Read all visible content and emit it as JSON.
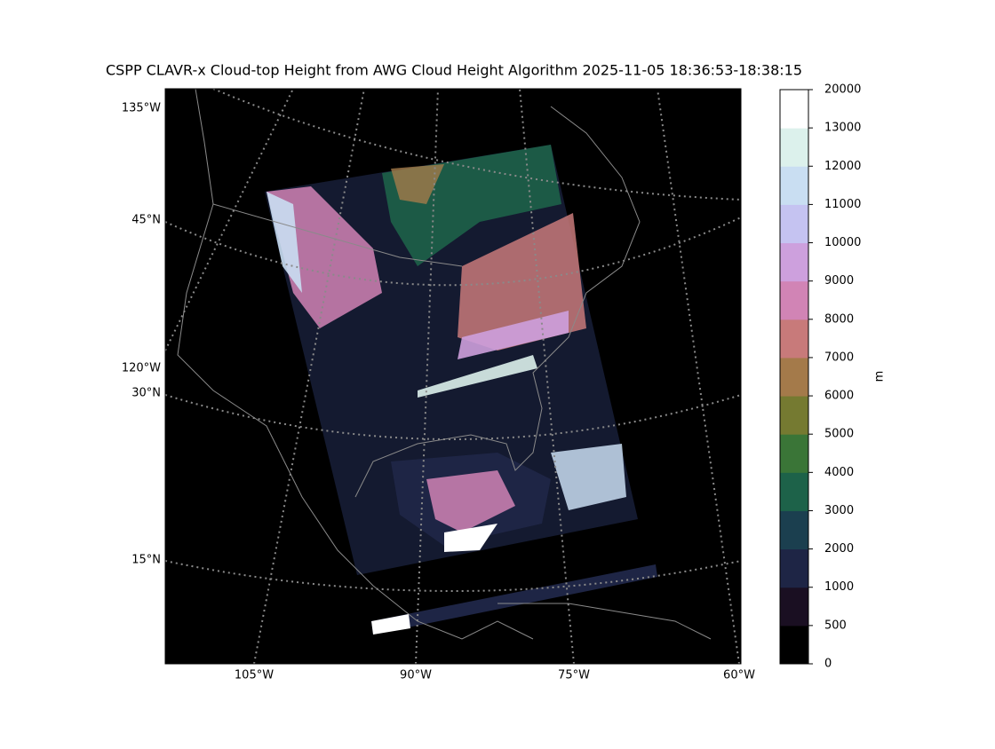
{
  "title": "CSPP CLAVR-x Cloud-top Height from AWG Cloud Height Algorithm 2025-11-05 18:36:53-18:38:15",
  "map": {
    "lon_labels": [
      "105°W",
      "90°W",
      "75°W",
      "60°W"
    ],
    "lat_labels": [
      "135°W",
      "45°N",
      "120°W",
      "30°N",
      "15°N"
    ]
  },
  "colorbar": {
    "label": "m",
    "levels": [
      0,
      500,
      1000,
      2000,
      3000,
      4000,
      5000,
      6000,
      7000,
      8000,
      9000,
      10000,
      11000,
      12000,
      13000,
      20000
    ],
    "colors": [
      "#000000",
      "#1a0f22",
      "#1e2545",
      "#1b3f4f",
      "#1d6249",
      "#3a7537",
      "#757a31",
      "#a47a4a",
      "#c87a7a",
      "#d184b5",
      "#cda0dd",
      "#c5c3f1",
      "#c9def2",
      "#dcf1ec",
      "#ffffff"
    ]
  }
}
